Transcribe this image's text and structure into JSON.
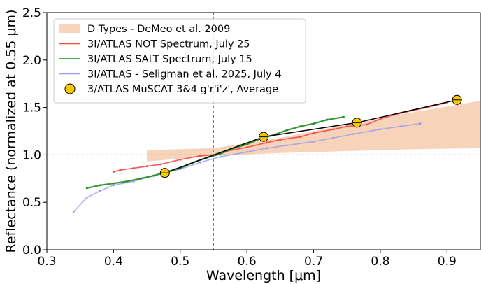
{
  "chart_data": {
    "type": "line",
    "title": "",
    "xlabel": "Wavelength [μm]",
    "ylabel": "Reflectance (normalized at 0.55 μm)",
    "xlim": [
      0.3,
      0.95
    ],
    "ylim": [
      0.0,
      2.5
    ],
    "xticks": [
      "0.3",
      "0.4",
      "0.5",
      "0.6",
      "0.7",
      "0.8",
      "0.9"
    ],
    "yticks": [
      "0.0",
      "0.5",
      "1.0",
      "1.5",
      "2.0",
      "2.5"
    ],
    "reference_lines": {
      "x": 0.55,
      "y": 1.0
    },
    "legend_position": "upper-left",
    "band": {
      "name": "D Types - DeMeo et al. 2009",
      "color": "#f4c8a8",
      "x": [
        0.45,
        0.55,
        0.65,
        0.75,
        0.85,
        0.95
      ],
      "lower": [
        0.93,
        0.99,
        1.02,
        1.04,
        1.06,
        1.07
      ],
      "upper": [
        1.05,
        1.07,
        1.18,
        1.32,
        1.45,
        1.57
      ]
    },
    "series": [
      {
        "name": "3I/ATLAS NOT Spectrum, July 25",
        "color": "#ff4444",
        "x": [
          0.4,
          0.41,
          0.43,
          0.45,
          0.47,
          0.5,
          0.53,
          0.55,
          0.57,
          0.6,
          0.63,
          0.65,
          0.68,
          0.7,
          0.73,
          0.75,
          0.78,
          0.8,
          0.82,
          0.85,
          0.87,
          0.9
        ],
        "y": [
          0.82,
          0.84,
          0.86,
          0.88,
          0.9,
          0.95,
          0.99,
          1.0,
          1.04,
          1.08,
          1.13,
          1.16,
          1.19,
          1.23,
          1.27,
          1.3,
          1.32,
          1.38,
          1.42,
          1.47,
          1.5,
          1.55
        ]
      },
      {
        "name": "3I/ATLAS SALT Spectrum, July 15",
        "color": "#228b22",
        "x": [
          0.36,
          0.38,
          0.4,
          0.42,
          0.44,
          0.46,
          0.48,
          0.5,
          0.52,
          0.54,
          0.56,
          0.58,
          0.6,
          0.62,
          0.64,
          0.66,
          0.68,
          0.7,
          0.72,
          0.745
        ],
        "y": [
          0.65,
          0.68,
          0.7,
          0.72,
          0.75,
          0.78,
          0.82,
          0.86,
          0.92,
          0.97,
          1.01,
          1.07,
          1.11,
          1.17,
          1.21,
          1.26,
          1.3,
          1.33,
          1.37,
          1.4
        ]
      },
      {
        "name": "3I/ATLAS - Seligman et al. 2025, July 4",
        "color": "#9c9cf4",
        "x": [
          0.34,
          0.36,
          0.38,
          0.4,
          0.43,
          0.46,
          0.5,
          0.53,
          0.56,
          0.6,
          0.63,
          0.66,
          0.7,
          0.73,
          0.76,
          0.8,
          0.83,
          0.86
        ],
        "y": [
          0.4,
          0.55,
          0.62,
          0.68,
          0.72,
          0.78,
          0.85,
          0.92,
          0.98,
          1.03,
          1.07,
          1.1,
          1.14,
          1.18,
          1.22,
          1.27,
          1.3,
          1.33
        ]
      }
    ],
    "points": {
      "name": "3/ATLAS MuSCAT 3&4 g'r'i'z', Average",
      "color": "#f5c800",
      "x": [
        0.477,
        0.625,
        0.765,
        0.915
      ],
      "y": [
        0.81,
        1.19,
        1.34,
        1.58
      ],
      "yerr": [
        0.04,
        0.04,
        0.04,
        0.06
      ]
    }
  }
}
